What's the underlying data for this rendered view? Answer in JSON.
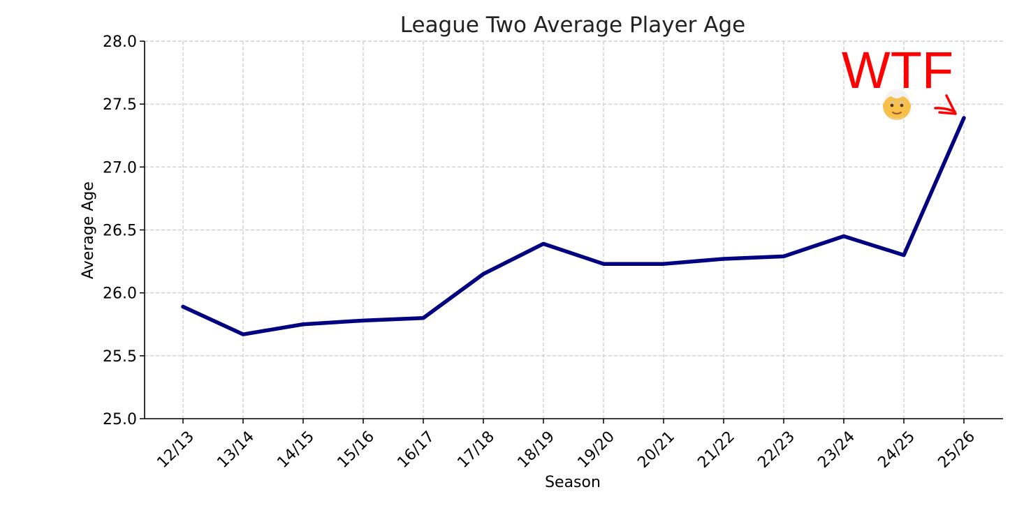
{
  "chart_data": {
    "type": "line",
    "title": "League Two Average Player Age",
    "xlabel": "Season",
    "ylabel": "Average Age",
    "categories": [
      "12/13",
      "13/14",
      "14/15",
      "15/16",
      "16/17",
      "17/18",
      "18/19",
      "19/20",
      "20/21",
      "21/22",
      "22/23",
      "23/24",
      "24/25",
      "25/26"
    ],
    "series": [
      {
        "values": [
          25.89,
          25.67,
          25.75,
          25.78,
          25.8,
          26.15,
          26.39,
          26.23,
          26.23,
          26.27,
          26.29,
          26.45,
          26.3,
          27.39
        ]
      }
    ],
    "ylim": [
      25.0,
      28.0
    ],
    "yticks": [
      "25.0",
      "25.5",
      "26.0",
      "26.5",
      "27.0",
      "27.5",
      "28.0"
    ],
    "grid": true,
    "annotation": {
      "text": "WTF",
      "emoji": "older-man-emoji",
      "target_category": "25/26"
    },
    "colors": {
      "line": "#000080",
      "grid": "#c8c8c8",
      "annotation": "#ff0000",
      "axis": "#000000"
    }
  }
}
